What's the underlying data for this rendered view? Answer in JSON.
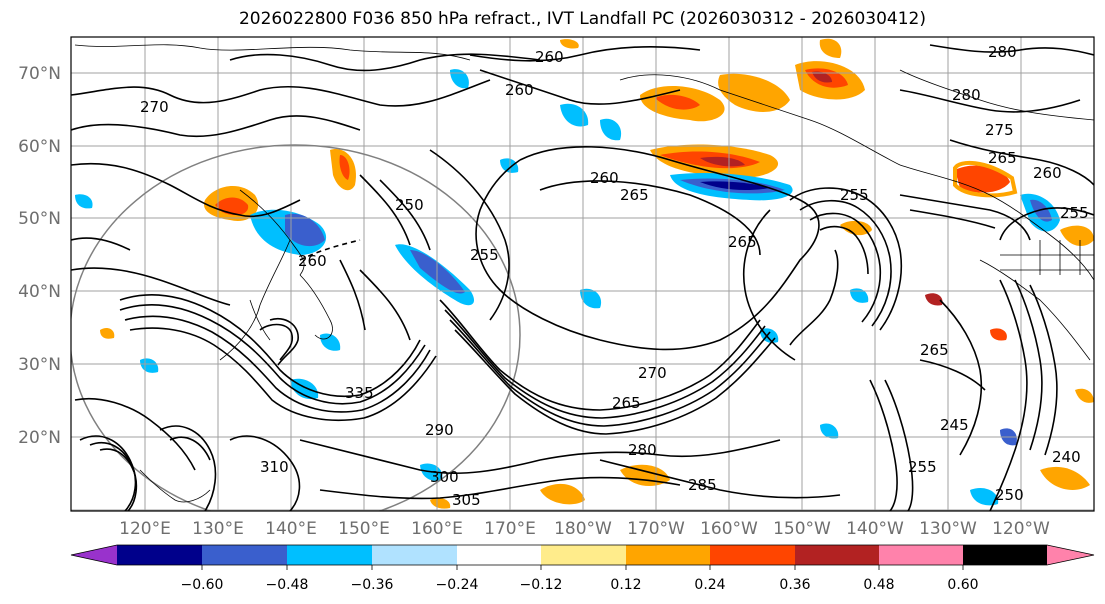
{
  "title": "2026022800 F036 850 hPa refract., IVT Landfall PC (2026030312 - 2026030412)",
  "map": {
    "lat_labels": [
      "70°N",
      "60°N",
      "50°N",
      "40°N",
      "30°N",
      "20°N"
    ],
    "lon_labels": [
      "120°E",
      "130°E",
      "140°E",
      "150°E",
      "160°E",
      "170°E",
      "180°W",
      "170°W",
      "160°W",
      "150°W",
      "140°W",
      "130°W",
      "120°W"
    ],
    "contour_labels": [
      "260",
      "280",
      "270",
      "260",
      "280",
      "275",
      "260",
      "255",
      "265",
      "260",
      "265",
      "250",
      "255",
      "265",
      "260",
      "255",
      "335",
      "270",
      "265",
      "290",
      "280",
      "300",
      "305",
      "285",
      "310",
      "265",
      "255",
      "245",
      "240",
      "250"
    ]
  },
  "colorbar": {
    "ticks": [
      "−0.60",
      "−0.48",
      "−0.36",
      "−0.24",
      "−0.12",
      "0.12",
      "0.24",
      "0.36",
      "0.48",
      "0.60"
    ],
    "colors": [
      "#9932cc",
      "#00008b",
      "#3a5fcd",
      "#00bfff",
      "#b0e2ff",
      "#ffffff",
      "#ffec8b",
      "#ffa500",
      "#ff4500",
      "#b22222",
      "#ff82ab"
    ]
  },
  "colors": {
    "contour": "#000000",
    "grid": "#a0a0a0",
    "coast": "#000000",
    "tick_label": "#6e6e6e"
  }
}
